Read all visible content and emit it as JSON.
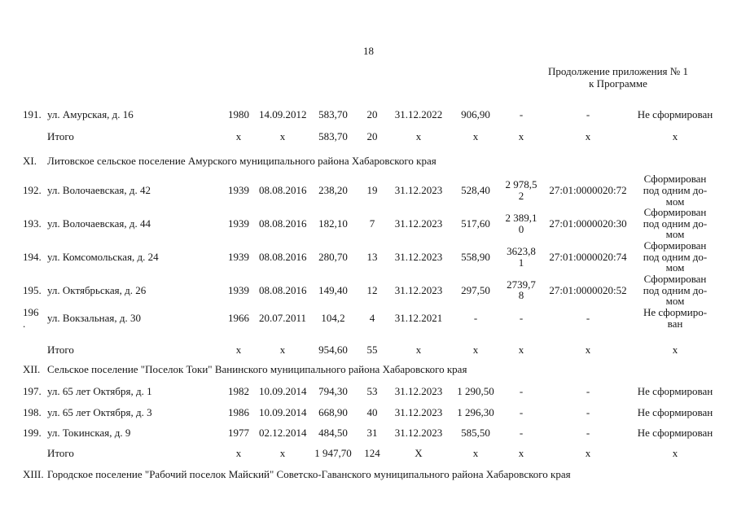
{
  "page": {
    "number": "18",
    "continuation_note": "Продолжение приложения № 1\nк Программе"
  },
  "table": {
    "sections": [
      {
        "rows": [
          {
            "num": "191.",
            "address": "ул. Амурская, д. 16",
            "year": "1980",
            "date": "14.09.2012",
            "area": "583,70",
            "units": "20",
            "term": "31.12.2022",
            "cost": "906,90",
            "fund": "-",
            "cadastral": "-",
            "status": "Не сформирован"
          }
        ],
        "total": {
          "label": "Итого",
          "year": "x",
          "date": "x",
          "area": "583,70",
          "units": "20",
          "term": "x",
          "cost": "x",
          "fund": "x",
          "cadastral": "x",
          "status": "x"
        }
      },
      {
        "numeral": "XI.",
        "title": "Литовское сельское поселение Амурского муниципального района Хабаровского края",
        "rows": [
          {
            "num": "192.",
            "address": "ул. Волочаевская, д. 42",
            "year": "1939",
            "date": "08.08.2016",
            "area": "238,20",
            "units": "19",
            "term": "31.12.2023",
            "cost": "528,40",
            "fund": "2 978,5\n2",
            "cadastral": "27:01:0000020:72",
            "status": "Сформирован\nпод одним до-\nмом"
          },
          {
            "num": "193.",
            "address": "ул. Волочаевская, д. 44",
            "year": "1939",
            "date": "08.08.2016",
            "area": "182,10",
            "units": "7",
            "term": "31.12.2023",
            "cost": "517,60",
            "fund": "2 389,1\n0",
            "cadastral": "27:01:0000020:30",
            "status": "Сформирован\nпод одним до-\nмом"
          },
          {
            "num": "194.",
            "address": "ул. Комсомольская, д. 24",
            "year": "1939",
            "date": "08.08.2016",
            "area": "280,70",
            "units": "13",
            "term": "31.12.2023",
            "cost": "558,90",
            "fund": "3623,8\n1",
            "cadastral": "27:01:0000020:74",
            "status": "Сформирован\nпод одним до-\nмом"
          },
          {
            "num": "195.",
            "address": "ул. Октябрьская, д. 26",
            "year": "1939",
            "date": "08.08.2016",
            "area": "149,40",
            "units": "12",
            "term": "31.12.2023",
            "cost": "297,50",
            "fund": "2739,7\n8",
            "cadastral": "27:01:0000020:52",
            "status": "Сформирован\nпод одним до-\nмом"
          },
          {
            "num": "196\n.",
            "address": "ул. Вокзальная, д. 30",
            "year": "1966",
            "date": "20.07.2011",
            "area": "104,2",
            "units": "4",
            "term": "31.12.2021",
            "cost": "-",
            "fund": "-",
            "cadastral": "-",
            "status": "Не сформиро-\nван"
          }
        ],
        "total": {
          "label": "Итого",
          "year": "x",
          "date": "x",
          "area": "954,60",
          "units": "55",
          "term": "x",
          "cost": "x",
          "fund": "x",
          "cadastral": "x",
          "status": "x"
        }
      },
      {
        "numeral": "XII.",
        "title": "Сельское поселение \"Поселок Токи\" Ванинского муниципального района Хабаровского края",
        "rows": [
          {
            "num": "197.",
            "address": "ул. 65 лет Октября, д. 1",
            "year": "1982",
            "date": "10.09.2014",
            "area": "794,30",
            "units": "53",
            "term": "31.12.2023",
            "cost": "1 290,50",
            "fund": "-",
            "cadastral": "-",
            "status": "Не сформирован"
          },
          {
            "num": "198.",
            "address": "ул. 65 лет Октября, д. 3",
            "year": "1986",
            "date": "10.09.2014",
            "area": "668,90",
            "units": "40",
            "term": "31.12.2023",
            "cost": "1 296,30",
            "fund": "-",
            "cadastral": "-",
            "status": "Не сформирован"
          },
          {
            "num": "199.",
            "address": "ул. Токинская, д. 9",
            "year": "1977",
            "date": "02.12.2014",
            "area": "484,50",
            "units": "31",
            "term": "31.12.2023",
            "cost": "585,50",
            "fund": "-",
            "cadastral": "-",
            "status": "Не сформирован"
          }
        ],
        "total": {
          "label": "Итого",
          "year": "x",
          "date": "x",
          "area": "1 947,70",
          "units": "124",
          "term": "X",
          "cost": "x",
          "fund": "x",
          "cadastral": "x",
          "status": "x"
        }
      },
      {
        "numeral": "XIII.",
        "title": "Городское поселение \"Рабочий поселок Майский\" Советско-Гаванского муниципального района Хабаровского края",
        "rows": []
      }
    ]
  }
}
